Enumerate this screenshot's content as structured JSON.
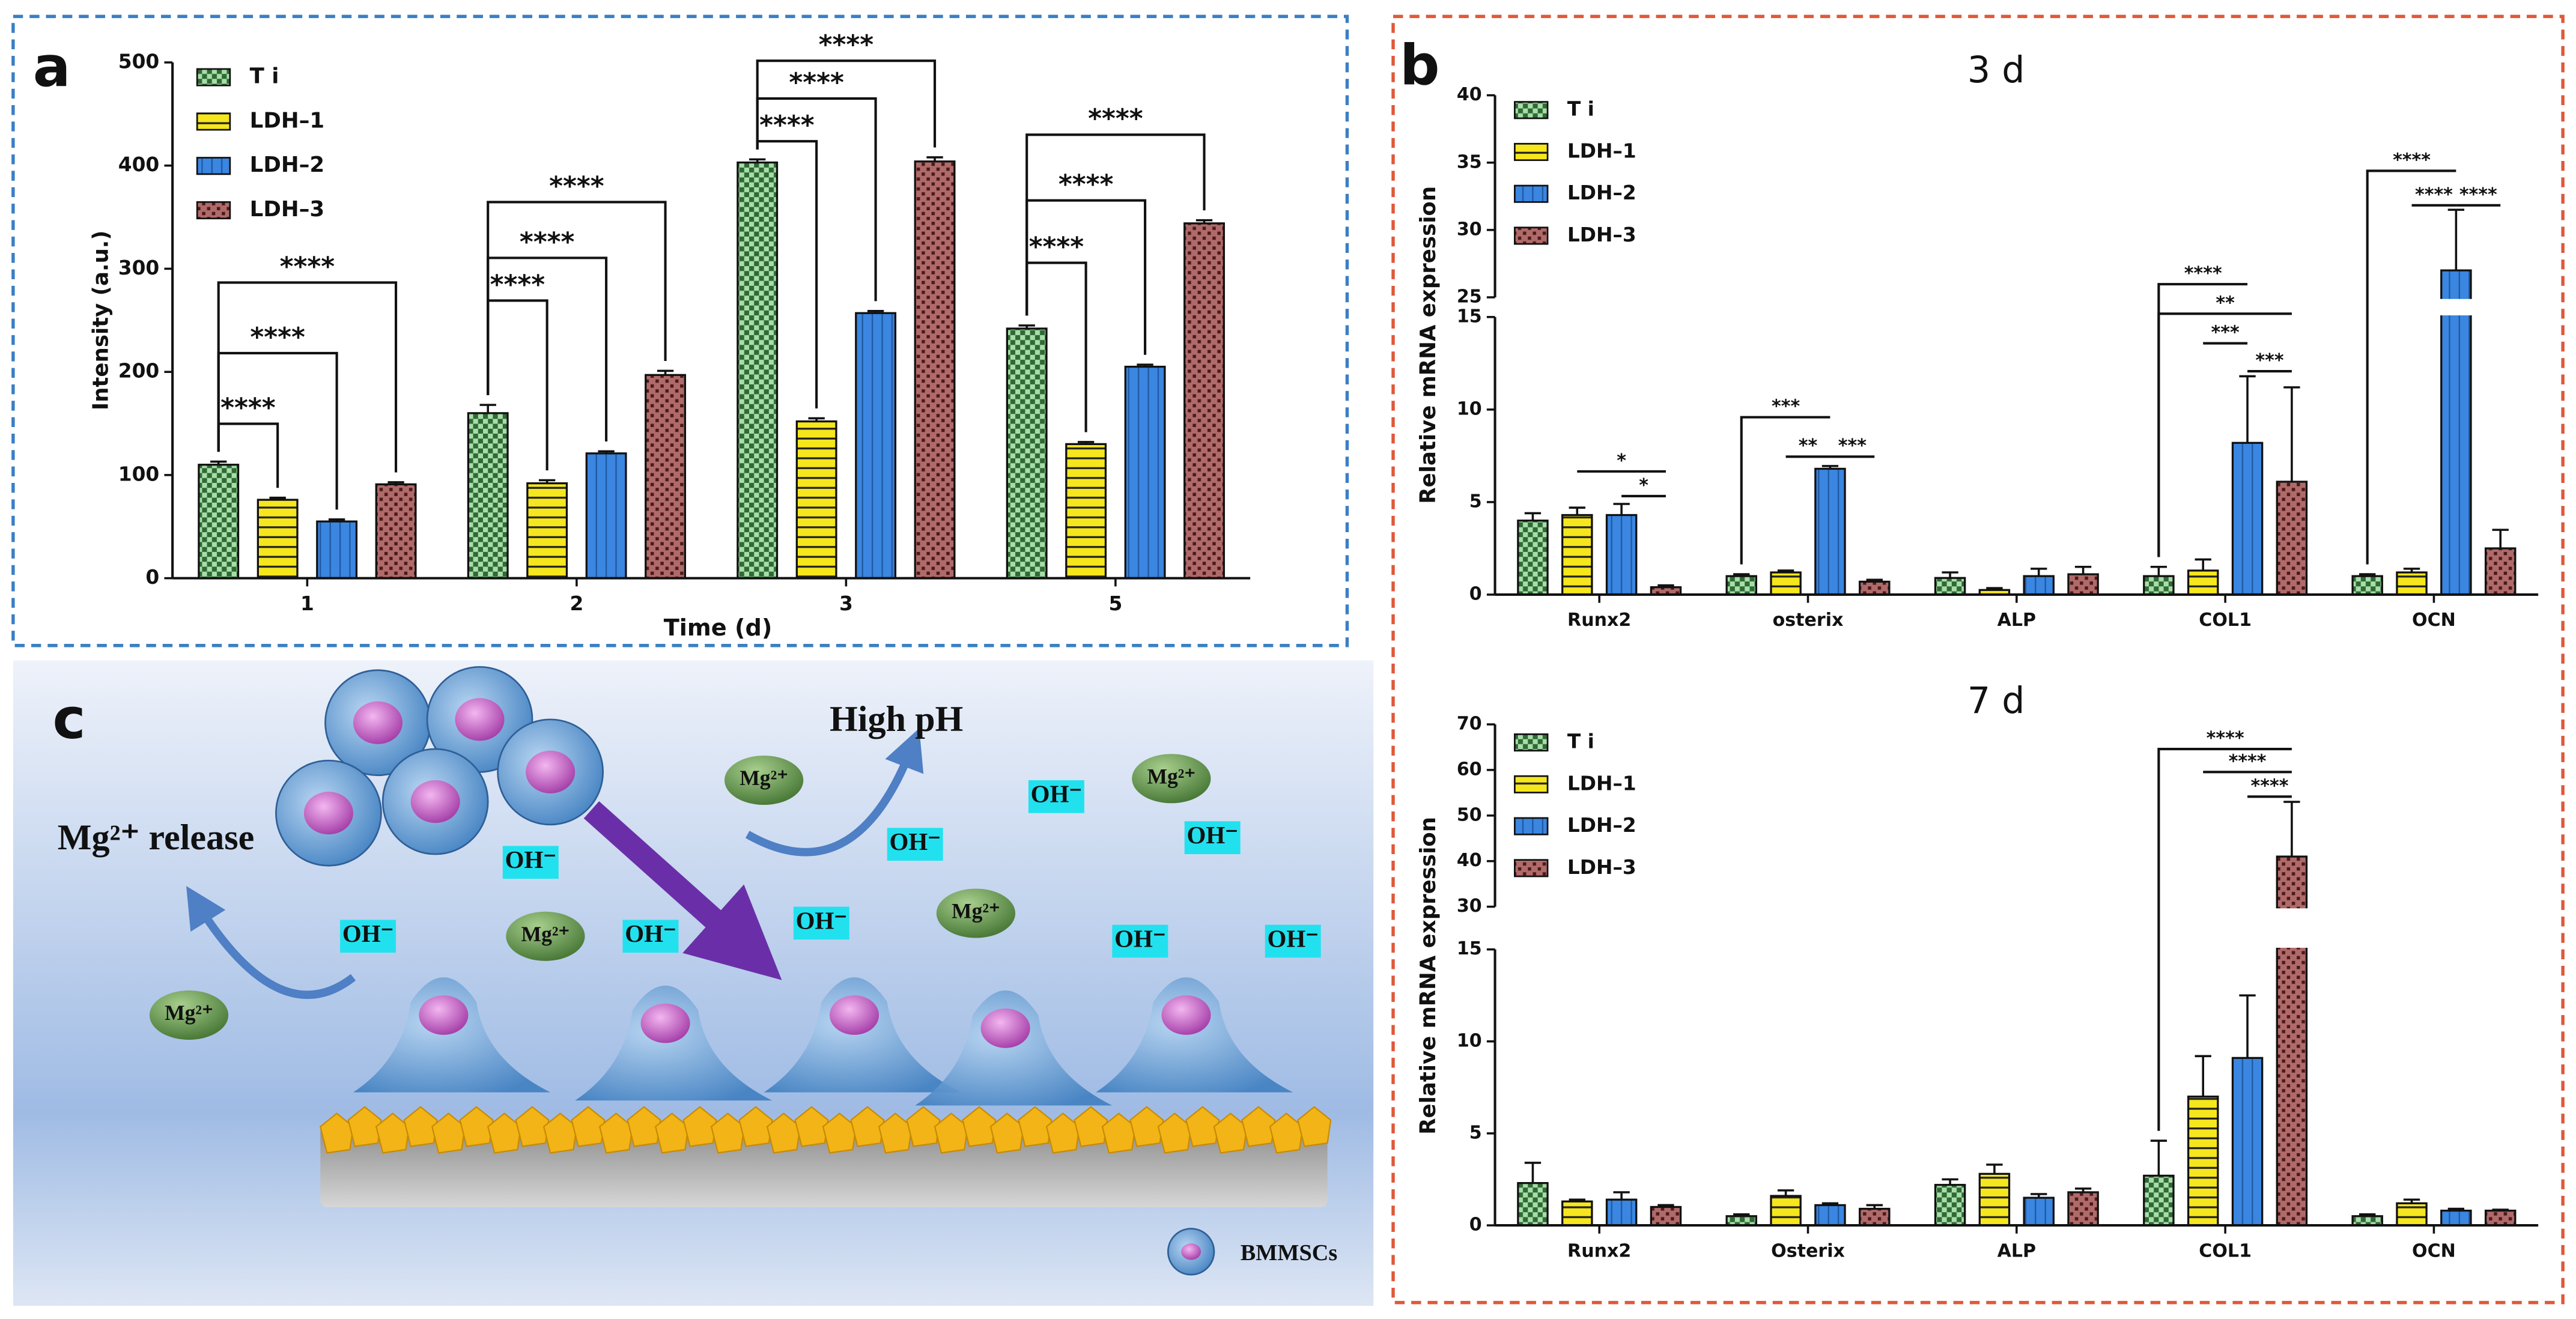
{
  "panel_labels": [
    "a",
    "b",
    "c"
  ],
  "chart_data": [
    {
      "type": "bar",
      "x_label": "Time (d)",
      "y_label": "Intensity (a.u.)",
      "categories": [
        "1",
        "2",
        "3",
        "5"
      ],
      "ylim": [
        0,
        500
      ],
      "yticks": [
        0,
        100,
        200,
        300,
        400,
        500
      ],
      "series": [
        {
          "name": "T i",
          "color": "#a8dca8",
          "pattern": "checker",
          "values": [
            110,
            160,
            403,
            242
          ],
          "errors": [
            3,
            8,
            3,
            3
          ]
        },
        {
          "name": "LDH–1",
          "color": "#f5e61e",
          "pattern": "hlines",
          "values": [
            76,
            92,
            152,
            130
          ],
          "errors": [
            2,
            3,
            3,
            2
          ]
        },
        {
          "name": "LDH–2",
          "color": "#3a86e0",
          "pattern": "vlines",
          "values": [
            55,
            121,
            257,
            205
          ],
          "errors": [
            2,
            2,
            2,
            2
          ]
        },
        {
          "name": "LDH–3",
          "color": "#b06a6a",
          "pattern": "dots",
          "values": [
            91,
            197,
            404,
            344
          ],
          "errors": [
            2,
            4,
            4,
            3
          ]
        }
      ],
      "annotations": [
        {
          "label": "****",
          "category": 0,
          "series": [
            0,
            1
          ]
        },
        {
          "label": "****",
          "category": 0,
          "series": [
            0,
            2
          ]
        },
        {
          "label": "****",
          "category": 0,
          "series": [
            0,
            3
          ]
        },
        {
          "label": "****",
          "category": 1,
          "series": [
            0,
            1
          ]
        },
        {
          "label": "****",
          "category": 1,
          "series": [
            0,
            2
          ]
        },
        {
          "label": "****",
          "category": 1,
          "series": [
            0,
            3
          ]
        },
        {
          "label": "****",
          "category": 2,
          "series": [
            0,
            1
          ]
        },
        {
          "label": "****",
          "category": 2,
          "series": [
            0,
            2
          ]
        },
        {
          "label": "****",
          "category": 2,
          "series": [
            0,
            3
          ]
        },
        {
          "label": "****",
          "category": 3,
          "series": [
            0,
            1
          ]
        },
        {
          "label": "****",
          "category": 3,
          "series": [
            0,
            2
          ]
        },
        {
          "label": "****",
          "category": 3,
          "series": [
            0,
            3
          ]
        }
      ]
    },
    {
      "type": "bar",
      "title": "3 d",
      "y_label": "Relative mRNA expression",
      "categories": [
        "Runx2",
        "osterix",
        "ALP",
        "COL1",
        "OCN"
      ],
      "ylim": [
        0,
        40
      ],
      "ybreak": [
        15,
        25
      ],
      "yticks": [
        0,
        5,
        10,
        15,
        25,
        30,
        35,
        40
      ],
      "series": [
        {
          "name": "T i",
          "color": "#a8dca8",
          "pattern": "checker",
          "values": [
            4.0,
            1.0,
            0.9,
            1.0,
            1.0
          ],
          "errors": [
            0.4,
            0.1,
            0.3,
            0.5,
            0.1
          ]
        },
        {
          "name": "LDH–1",
          "color": "#f5e61e",
          "pattern": "hlines",
          "values": [
            4.3,
            1.2,
            0.25,
            1.3,
            1.2
          ],
          "errors": [
            0.4,
            0.1,
            0.1,
            0.6,
            0.2
          ]
        },
        {
          "name": "LDH–2",
          "color": "#3a86e0",
          "pattern": "vlines",
          "values": [
            4.3,
            6.8,
            1.0,
            8.2,
            27
          ],
          "errors": [
            0.6,
            0.15,
            0.4,
            3.6,
            4.5
          ]
        },
        {
          "name": "LDH–3",
          "color": "#b06a6a",
          "pattern": "dots",
          "values": [
            0.4,
            0.7,
            1.1,
            6.1,
            2.5
          ],
          "errors": [
            0.1,
            0.1,
            0.4,
            5.1,
            1.0
          ]
        }
      ],
      "annotations": [
        {
          "label": "*",
          "category": 0,
          "series": [
            1,
            3
          ]
        },
        {
          "label": "*",
          "category": 0,
          "series": [
            2,
            3
          ]
        },
        {
          "label": "***",
          "category": 1,
          "series": [
            0,
            2
          ]
        },
        {
          "label": "**",
          "category": 1,
          "series": [
            1,
            2
          ]
        },
        {
          "label": "***",
          "category": 1,
          "series": [
            2,
            3
          ]
        },
        {
          "label": "****",
          "category": 3,
          "series": [
            0,
            2
          ]
        },
        {
          "label": "**",
          "category": 3,
          "series": [
            0,
            3
          ]
        },
        {
          "label": "***",
          "category": 3,
          "series": [
            1,
            2
          ]
        },
        {
          "label": "***",
          "category": 3,
          "series": [
            2,
            3
          ]
        },
        {
          "label": "****",
          "category": 4,
          "series": [
            0,
            2
          ]
        },
        {
          "label": "****",
          "category": 4,
          "series": [
            1,
            2
          ]
        },
        {
          "label": "****",
          "category": 4,
          "series": [
            2,
            3
          ]
        }
      ]
    },
    {
      "type": "bar",
      "title": "7 d",
      "y_label": "Relative mRNA expression",
      "categories": [
        "Runx2",
        "Osterix",
        "ALP",
        "COL1",
        "OCN"
      ],
      "ylim": [
        0,
        70
      ],
      "ybreak": [
        15,
        30
      ],
      "yticks": [
        0,
        5,
        10,
        15,
        30,
        40,
        50,
        60,
        70
      ],
      "series": [
        {
          "name": "T i",
          "color": "#a8dca8",
          "pattern": "checker",
          "values": [
            2.3,
            0.5,
            2.2,
            2.7,
            0.5
          ],
          "errors": [
            1.1,
            0.1,
            0.3,
            1.9,
            0.1
          ]
        },
        {
          "name": "LDH–1",
          "color": "#f5e61e",
          "pattern": "hlines",
          "values": [
            1.3,
            1.6,
            2.8,
            7.0,
            1.2
          ],
          "errors": [
            0.1,
            0.3,
            0.5,
            2.2,
            0.2
          ]
        },
        {
          "name": "LDH–2",
          "color": "#3a86e0",
          "pattern": "vlines",
          "values": [
            1.4,
            1.1,
            1.5,
            9.1,
            0.8
          ],
          "errors": [
            0.4,
            0.1,
            0.2,
            3.4,
            0.1
          ]
        },
        {
          "name": "LDH–3",
          "color": "#b06a6a",
          "pattern": "dots",
          "values": [
            1.0,
            0.9,
            1.8,
            41,
            0.8
          ],
          "errors": [
            0.1,
            0.2,
            0.2,
            12,
            0.05
          ]
        }
      ],
      "annotations": [
        {
          "label": "****",
          "category": 3,
          "series": [
            0,
            3
          ]
        },
        {
          "label": "****",
          "category": 3,
          "series": [
            1,
            3
          ]
        },
        {
          "label": "****",
          "category": 3,
          "series": [
            2,
            3
          ]
        }
      ]
    }
  ],
  "panel_c": {
    "high_ph": "High pH",
    "release": "Mg²⁺ release",
    "legend": "BMMSCs",
    "oh_labels": [
      "OH⁻",
      "OH⁻",
      "OH⁻",
      "OH⁻",
      "OH⁻",
      "OH⁻",
      "OH⁻",
      "OH⁻",
      "OH⁻"
    ],
    "mg_labels": [
      "Mg²⁺",
      "Mg²⁺",
      "Mg²⁺",
      "Mg²⁺",
      "Mg²⁺"
    ]
  }
}
